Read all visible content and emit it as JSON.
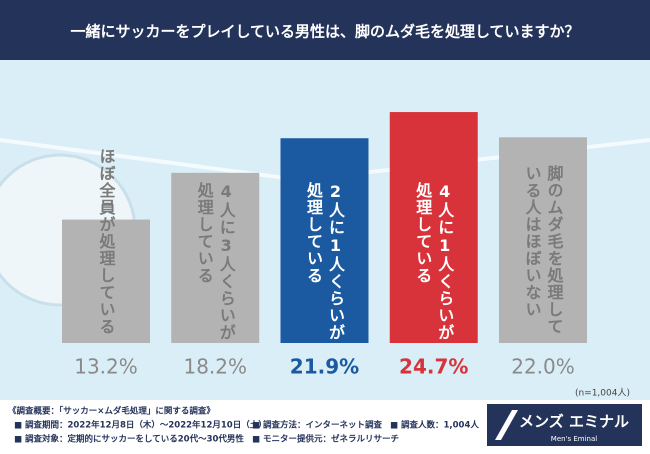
{
  "chart_data": {
    "type": "bar",
    "title": "一緒にサッカーをプレイしている男性は、脚のムダ毛を処理していますか？",
    "categories": [
      [
        "ほぼ全員が処理している"
      ],
      [
        "4人に3人くらいが",
        "処理している"
      ],
      [
        "2人に1人くらいが",
        "処理している"
      ],
      [
        "4人に1人くらいが",
        "処理している"
      ],
      [
        "脚のムダ毛を処理して",
        "いる人はほぼいない"
      ]
    ],
    "values": [
      13.2,
      18.2,
      21.9,
      24.7,
      22.0
    ],
    "value_labels": [
      "13.2%",
      "18.2%",
      "21.9%",
      "24.7%",
      "22.0%"
    ],
    "colors": [
      "#b3b3b3",
      "#b3b3b3",
      "#1b5aa0",
      "#d8333a",
      "#b3b3b3"
    ],
    "label_colors": [
      "#8a8a8a",
      "#8a8a8a",
      "#1b5aa0",
      "#d8333a",
      "#8a8a8a"
    ],
    "note": "(n=1,004人)"
  },
  "footer": {
    "heading": "《調査概要：「サッカー×ムダ毛処理」に関する調査》",
    "items": [
      "■ 調査期間：2022年12月8日（木）〜2022年12月10日（土）",
      "■ 調査方法：インターネット調査",
      "■ 調査人数：1,004人",
      "■ 調査対象：定期的にサッカーをしている20代〜30代男性",
      "■ モニター提供元：ゼネラルリサーチ"
    ],
    "logo": "メンズ エミナル",
    "logo_sub": "Men's Eminal"
  }
}
